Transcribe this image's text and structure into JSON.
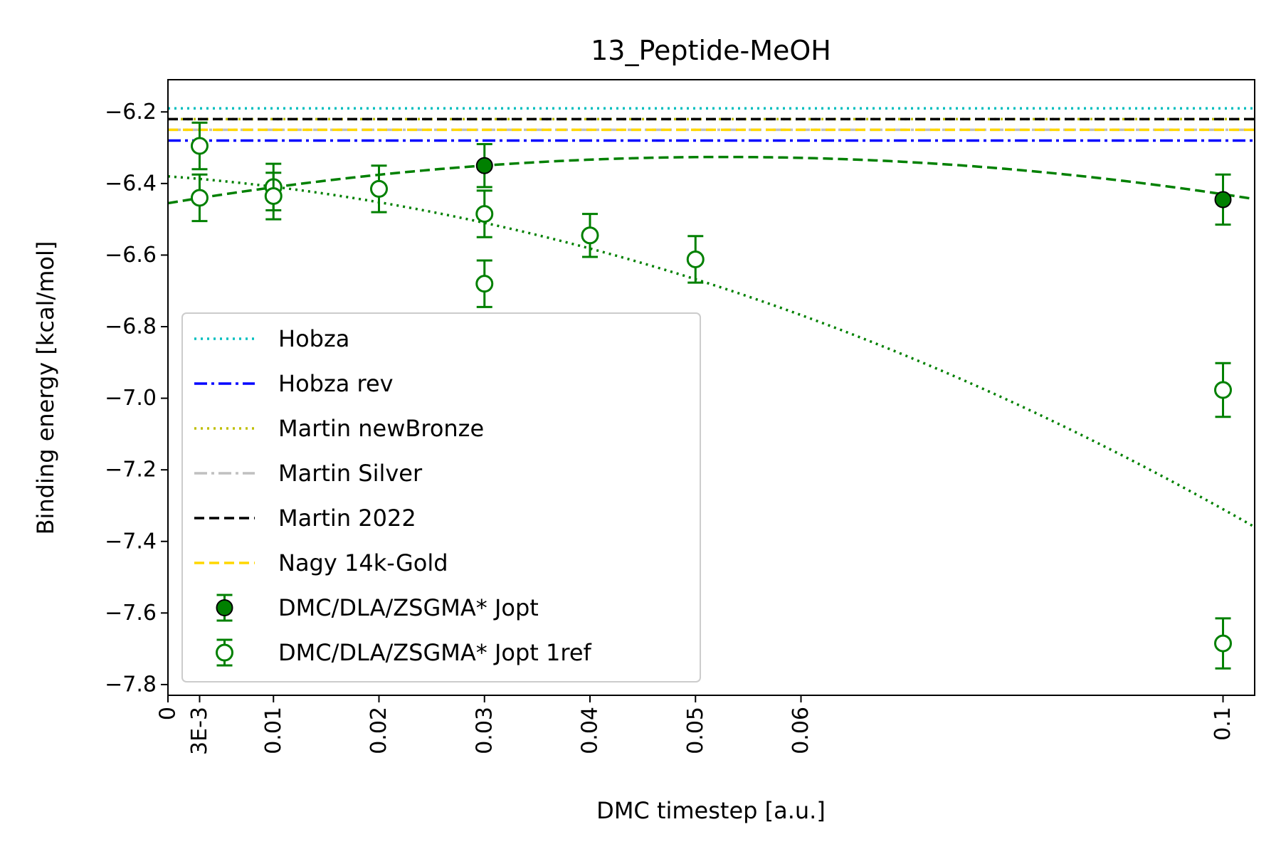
{
  "chart_data": {
    "type": "scatter",
    "title": "13_Peptide-MeOH",
    "xlabel": "DMC timestep [a.u.]",
    "ylabel": "Binding energy [kcal/mol]",
    "xlim": [
      0,
      0.103
    ],
    "ylim": [
      -7.83,
      -6.11
    ],
    "x_ticks": [
      {
        "value": 0,
        "label": "0"
      },
      {
        "value": 0.003,
        "label": "3E-3"
      },
      {
        "value": 0.01,
        "label": "0.01"
      },
      {
        "value": 0.02,
        "label": "0.02"
      },
      {
        "value": 0.03,
        "label": "0.03"
      },
      {
        "value": 0.04,
        "label": "0.04"
      },
      {
        "value": 0.05,
        "label": "0.05"
      },
      {
        "value": 0.06,
        "label": "0.06"
      },
      {
        "value": 0.1,
        "label": "0.1"
      }
    ],
    "y_ticks": [
      {
        "value": -6.2,
        "label": "−6.2"
      },
      {
        "value": -6.4,
        "label": "−6.4"
      },
      {
        "value": -6.6,
        "label": "−6.6"
      },
      {
        "value": -6.8,
        "label": "−6.8"
      },
      {
        "value": -7.0,
        "label": "−7.0"
      },
      {
        "value": -7.2,
        "label": "−7.2"
      },
      {
        "value": -7.4,
        "label": "−7.4"
      },
      {
        "value": -7.6,
        "label": "−7.6"
      },
      {
        "value": -7.8,
        "label": "−7.8"
      }
    ],
    "grid": false,
    "legend_position": "lower-left",
    "reference_lines": [
      {
        "name": "Hobza",
        "y": -6.19,
        "color": "#00bfbf",
        "style": "dotted"
      },
      {
        "name": "Hobza rev",
        "y": -6.28,
        "color": "#0000ff",
        "style": "dashdot"
      },
      {
        "name": "Martin newBronze",
        "y": -6.22,
        "color": "#bfbf00",
        "style": "dotted"
      },
      {
        "name": "Martin Silver",
        "y": -6.25,
        "color": "#c0c0c0",
        "style": "dashdot"
      },
      {
        "name": "Martin 2022",
        "y": -6.22,
        "color": "#000000",
        "style": "dashed"
      },
      {
        "name": "Nagy 14k-Gold",
        "y": -6.25,
        "color": "#ffd700",
        "style": "dashed"
      }
    ],
    "series": [
      {
        "name": "DMC/DLA/ZSGMA* Jopt",
        "marker": "filled-circle",
        "color": "#008000",
        "points": [
          {
            "x": 0.03,
            "y": -6.35,
            "err": 0.06
          },
          {
            "x": 0.1,
            "y": -6.445,
            "err": 0.07
          }
        ]
      },
      {
        "name": "DMC/DLA/ZSGMA* Jopt 1ref",
        "marker": "open-circle",
        "color": "#008000",
        "points": [
          {
            "x": 0.003,
            "y": -6.295,
            "err": 0.065
          },
          {
            "x": 0.003,
            "y": -6.44,
            "err": 0.065
          },
          {
            "x": 0.01,
            "y": -6.41,
            "err": 0.065
          },
          {
            "x": 0.01,
            "y": -6.435,
            "err": 0.065
          },
          {
            "x": 0.02,
            "y": -6.415,
            "err": 0.065
          },
          {
            "x": 0.03,
            "y": -6.485,
            "err": 0.065
          },
          {
            "x": 0.03,
            "y": -6.68,
            "err": 0.065
          },
          {
            "x": 0.04,
            "y": -6.545,
            "err": 0.06
          },
          {
            "x": 0.05,
            "y": -6.612,
            "err": 0.065
          },
          {
            "x": 0.1,
            "y": -6.977,
            "err": 0.075
          },
          {
            "x": 0.1,
            "y": -7.685,
            "err": 0.07
          }
        ]
      }
    ],
    "fits": [
      {
        "series": "DMC/DLA/ZSGMA* Jopt",
        "style": "dashed",
        "color": "#008000",
        "coeffs": [
          -6.455,
          4.9,
          -46.5
        ]
      },
      {
        "series": "DMC/DLA/ZSGMA* Jopt 1ref",
        "style": "dotted",
        "color": "#008000",
        "coeffs": [
          -6.38,
          -2.2,
          -71.0
        ]
      }
    ]
  }
}
